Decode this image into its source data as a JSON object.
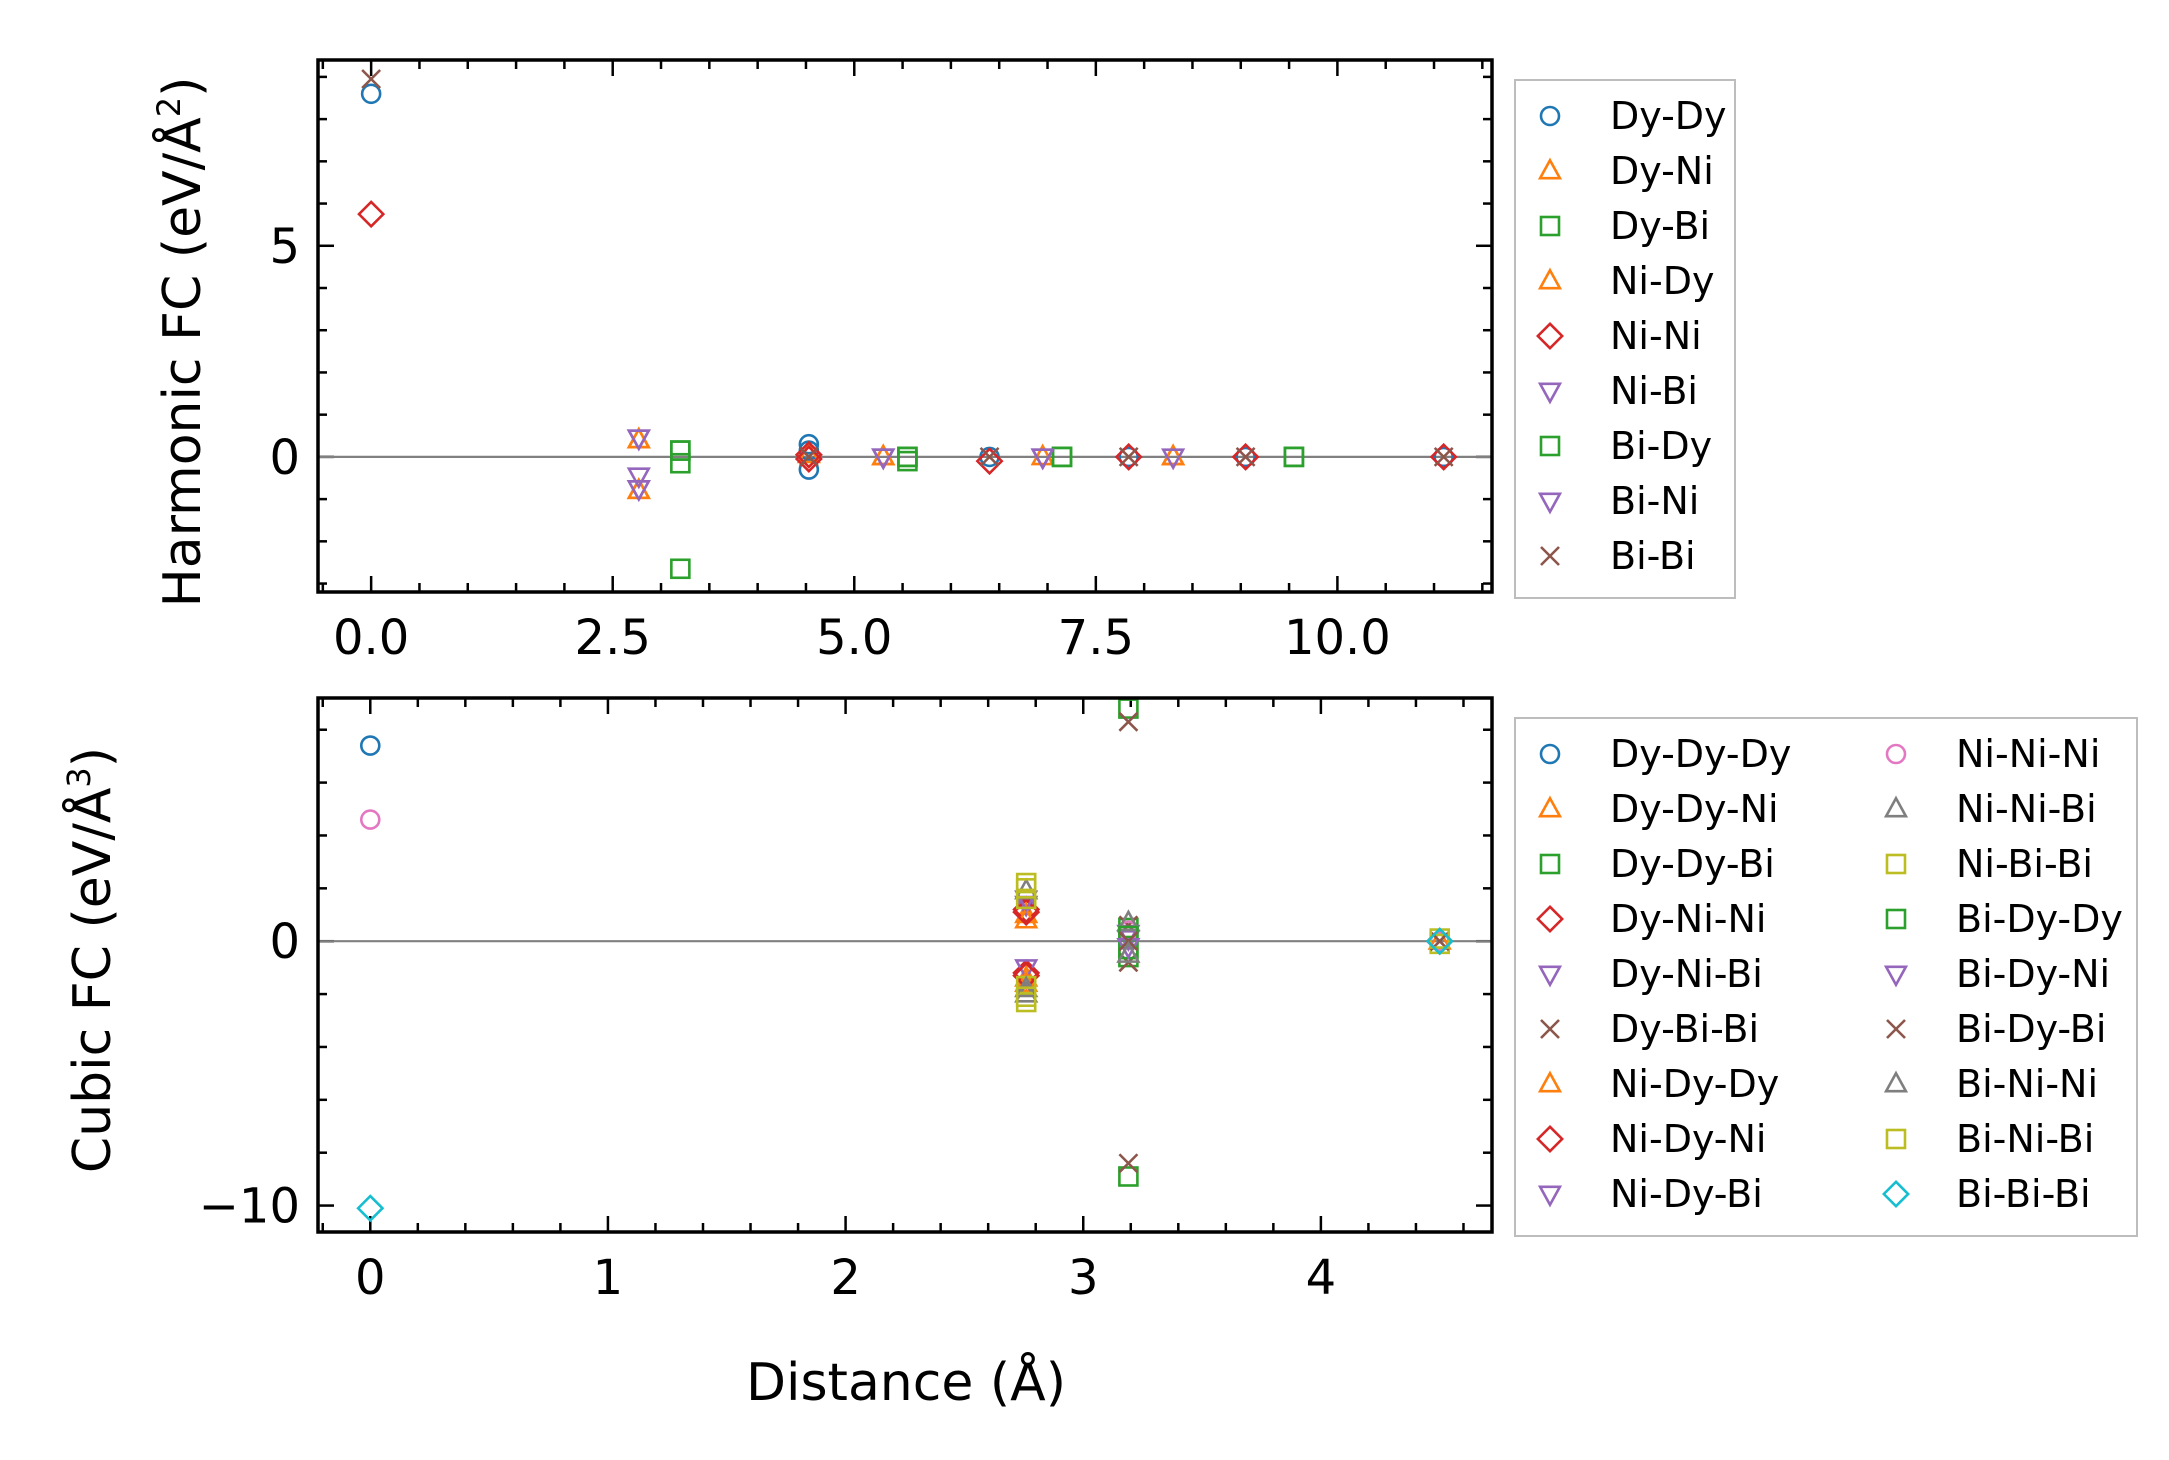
{
  "figure": {
    "xlabel": "Distance (Å)"
  },
  "chart_data": [
    {
      "type": "scatter",
      "name": "harmonic",
      "ylabel_main": "Harmonic FC (eV/Å",
      "ylabel_sup": "2",
      "ylabel_close": ")",
      "xlim": [
        -0.55,
        11.6
      ],
      "ylim": [
        -3.2,
        9.4
      ],
      "xticks": [
        0.0,
        2.5,
        5.0,
        7.5,
        10.0
      ],
      "xtick_labels": [
        "0.0",
        "2.5",
        "5.0",
        "7.5",
        "10.0"
      ],
      "yticks": [
        0,
        5
      ],
      "ytick_labels": [
        "0",
        "5"
      ],
      "zero_line": 0,
      "legend": {
        "columns": 1,
        "placement": "right",
        "entries": [
          "Dy-Dy",
          "Dy-Ni",
          "Dy-Bi",
          "Ni-Dy",
          "Ni-Ni",
          "Ni-Bi",
          "Bi-Dy",
          "Bi-Ni",
          "Bi-Bi"
        ]
      },
      "series": [
        {
          "name": "Dy-Dy",
          "marker": "circle",
          "color": "#1f77b4",
          "points": [
            [
              0,
              8.6
            ],
            [
              4.53,
              0.3
            ],
            [
              4.53,
              0.15
            ],
            [
              4.53,
              -0.3
            ],
            [
              6.4,
              0.0
            ],
            [
              7.84,
              0.0
            ],
            [
              9.05,
              0.0
            ],
            [
              11.1,
              0.0
            ]
          ]
        },
        {
          "name": "Dy-Ni",
          "marker": "triangle-up",
          "color": "#ff7f0e",
          "points": [
            [
              2.77,
              0.4
            ],
            [
              2.77,
              -0.8
            ],
            [
              4.53,
              0.05
            ],
            [
              5.3,
              0.0
            ],
            [
              6.95,
              0.0
            ],
            [
              8.3,
              0.0
            ]
          ]
        },
        {
          "name": "Dy-Bi",
          "marker": "square",
          "color": "#2ca02c",
          "points": [
            [
              3.2,
              0.15
            ],
            [
              3.2,
              -0.15
            ],
            [
              3.2,
              -2.65
            ],
            [
              5.55,
              0.0
            ],
            [
              5.55,
              -0.1
            ],
            [
              7.15,
              0.0
            ],
            [
              9.55,
              0.0
            ]
          ]
        },
        {
          "name": "Ni-Dy",
          "marker": "triangle-up",
          "color": "#ff7f0e",
          "points": [
            [
              2.77,
              0.4
            ],
            [
              2.77,
              -0.8
            ],
            [
              5.3,
              0.0
            ],
            [
              8.3,
              0.0
            ]
          ]
        },
        {
          "name": "Ni-Ni",
          "marker": "diamond",
          "color": "#d62728",
          "points": [
            [
              0,
              5.75
            ],
            [
              4.53,
              0.05
            ],
            [
              4.53,
              -0.05
            ],
            [
              6.4,
              -0.1
            ],
            [
              7.84,
              0.0
            ],
            [
              9.05,
              0.0
            ],
            [
              11.1,
              0.0
            ]
          ]
        },
        {
          "name": "Ni-Bi",
          "marker": "triangle-down",
          "color": "#9467bd",
          "points": [
            [
              2.77,
              0.45
            ],
            [
              2.77,
              -0.45
            ],
            [
              2.77,
              -0.75
            ],
            [
              5.3,
              0.0
            ],
            [
              6.95,
              0.0
            ],
            [
              8.3,
              0.0
            ]
          ]
        },
        {
          "name": "Bi-Dy",
          "marker": "square",
          "color": "#2ca02c",
          "points": [
            [
              3.2,
              0.15
            ],
            [
              5.55,
              0.0
            ],
            [
              7.15,
              0.0
            ],
            [
              9.55,
              0.0
            ]
          ]
        },
        {
          "name": "Bi-Ni",
          "marker": "triangle-down",
          "color": "#9467bd",
          "points": [
            [
              2.77,
              0.45
            ],
            [
              2.77,
              -0.75
            ],
            [
              5.3,
              0.0
            ],
            [
              6.95,
              0.0
            ]
          ]
        },
        {
          "name": "Bi-Bi",
          "marker": "x",
          "color": "#8c564b",
          "points": [
            [
              0,
              8.95
            ],
            [
              4.53,
              0.0
            ],
            [
              6.4,
              0.0
            ],
            [
              7.84,
              0.0
            ],
            [
              9.05,
              0.0
            ],
            [
              11.1,
              0.0
            ]
          ]
        }
      ]
    },
    {
      "type": "scatter",
      "name": "cubic",
      "ylabel_main": "Cubic FC (eV/Å",
      "ylabel_sup": "3",
      "ylabel_close": ")",
      "xlim": [
        -0.22,
        4.72
      ],
      "ylim": [
        -11.0,
        9.2
      ],
      "xticks": [
        0,
        1,
        2,
        3,
        4
      ],
      "xtick_labels": [
        "0",
        "1",
        "2",
        "3",
        "4"
      ],
      "yticks": [
        -10,
        0
      ],
      "ytick_labels": [
        "−10",
        "0"
      ],
      "zero_line": 0,
      "legend": {
        "columns": 2,
        "placement": "right",
        "entries": [
          "Dy-Dy-Dy",
          "Dy-Dy-Ni",
          "Dy-Dy-Bi",
          "Dy-Ni-Ni",
          "Dy-Ni-Bi",
          "Dy-Bi-Bi",
          "Ni-Dy-Dy",
          "Ni-Dy-Ni",
          "Ni-Dy-Bi",
          "Ni-Ni-Ni",
          "Ni-Ni-Bi",
          "Ni-Bi-Bi",
          "Bi-Dy-Dy",
          "Bi-Dy-Ni",
          "Bi-Dy-Bi",
          "Bi-Ni-Ni",
          "Bi-Ni-Bi",
          "Bi-Bi-Bi"
        ]
      },
      "series": [
        {
          "name": "Dy-Dy-Dy",
          "marker": "circle",
          "color": "#1f77b4",
          "points": [
            [
              0,
              7.4
            ],
            [
              4.5,
              0.0
            ]
          ]
        },
        {
          "name": "Dy-Dy-Ni",
          "marker": "triangle-up",
          "color": "#ff7f0e",
          "points": [
            [
              2.76,
              1.0
            ],
            [
              2.76,
              -1.4
            ],
            [
              4.5,
              0.0
            ]
          ]
        },
        {
          "name": "Dy-Dy-Bi",
          "marker": "square",
          "color": "#2ca02c",
          "points": [
            [
              3.19,
              8.8
            ],
            [
              3.19,
              -8.9
            ],
            [
              3.19,
              0.5
            ],
            [
              3.19,
              -0.6
            ]
          ]
        },
        {
          "name": "Dy-Ni-Ni",
          "marker": "diamond",
          "color": "#d62728",
          "points": [
            [
              2.76,
              1.2
            ],
            [
              2.76,
              -1.2
            ],
            [
              4.5,
              0.0
            ]
          ]
        },
        {
          "name": "Dy-Ni-Bi",
          "marker": "triangle-down",
          "color": "#9467bd",
          "points": [
            [
              2.76,
              1.4
            ],
            [
              2.76,
              -1.0
            ],
            [
              3.19,
              0.3
            ]
          ]
        },
        {
          "name": "Dy-Bi-Bi",
          "marker": "x",
          "color": "#8c564b",
          "points": [
            [
              3.19,
              8.3
            ],
            [
              3.19,
              -8.4
            ],
            [
              3.19,
              0.6
            ],
            [
              3.19,
              -0.8
            ]
          ]
        },
        {
          "name": "Ni-Dy-Dy",
          "marker": "triangle-up",
          "color": "#ff7f0e",
          "points": [
            [
              2.76,
              0.8
            ],
            [
              2.76,
              -1.6
            ]
          ]
        },
        {
          "name": "Ni-Dy-Ni",
          "marker": "diamond",
          "color": "#d62728",
          "points": [
            [
              2.76,
              1.1
            ],
            [
              2.76,
              -1.3
            ]
          ]
        },
        {
          "name": "Ni-Dy-Bi",
          "marker": "triangle-down",
          "color": "#9467bd",
          "points": [
            [
              2.76,
              1.6
            ],
            [
              3.19,
              0.1
            ]
          ]
        },
        {
          "name": "Ni-Ni-Ni",
          "marker": "circle",
          "color": "#e377c2",
          "points": [
            [
              0,
              4.6
            ],
            [
              3.19,
              0.4
            ],
            [
              4.5,
              0.0
            ]
          ]
        },
        {
          "name": "Ni-Ni-Bi",
          "marker": "triangle-up",
          "color": "#7f7f7f",
          "points": [
            [
              2.76,
              1.9
            ],
            [
              2.76,
              -2.0
            ],
            [
              3.19,
              0.7
            ]
          ]
        },
        {
          "name": "Ni-Bi-Bi",
          "marker": "square",
          "color": "#bcbd22",
          "points": [
            [
              2.76,
              2.2
            ],
            [
              2.76,
              -2.3
            ],
            [
              2.76,
              1.6
            ],
            [
              2.76,
              -1.7
            ],
            [
              4.5,
              -0.1
            ]
          ]
        },
        {
          "name": "Bi-Dy-Dy",
          "marker": "square",
          "color": "#2ca02c",
          "points": [
            [
              3.19,
              -0.3
            ],
            [
              3.19,
              0.2
            ]
          ]
        },
        {
          "name": "Bi-Dy-Ni",
          "marker": "triangle-down",
          "color": "#9467bd",
          "points": [
            [
              3.19,
              -0.2
            ]
          ]
        },
        {
          "name": "Bi-Dy-Bi",
          "marker": "x",
          "color": "#8c564b",
          "points": [
            [
              3.19,
              0.0
            ],
            [
              4.5,
              0.0
            ]
          ]
        },
        {
          "name": "Bi-Ni-Ni",
          "marker": "triangle-up",
          "color": "#7f7f7f",
          "points": [
            [
              2.76,
              -1.8
            ],
            [
              3.19,
              -0.5
            ]
          ]
        },
        {
          "name": "Bi-Ni-Bi",
          "marker": "square",
          "color": "#bcbd22",
          "points": [
            [
              2.76,
              2.0
            ],
            [
              2.76,
              -2.1
            ],
            [
              4.5,
              0.1
            ]
          ]
        },
        {
          "name": "Bi-Bi-Bi",
          "marker": "diamond",
          "color": "#17becf",
          "points": [
            [
              0,
              -10.1
            ],
            [
              4.5,
              0.0
            ]
          ]
        }
      ]
    }
  ]
}
